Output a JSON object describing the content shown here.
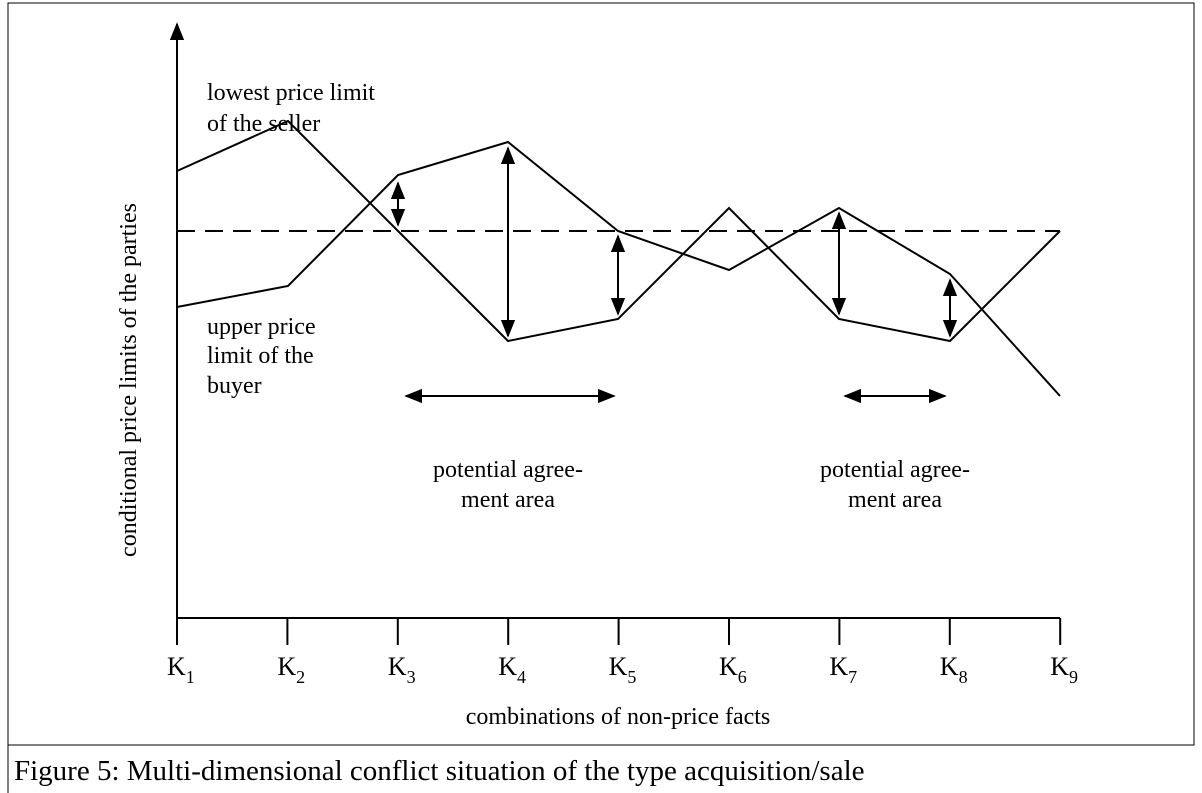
{
  "figure": {
    "seller_label": [
      "lowest price limit",
      "of the seller"
    ],
    "buyer_label": [
      "upper price",
      "limit of the",
      "buyer"
    ],
    "areas": [
      [
        "potential agree-",
        "ment area"
      ],
      [
        "potential agree-",
        "ment area"
      ]
    ],
    "y_axis_label": "conditional price limits of the parties",
    "x_axis_label": "combinations of non-price facts",
    "ticks": [
      {
        "base": "K",
        "sub": "1"
      },
      {
        "base": "K",
        "sub": "2"
      },
      {
        "base": "K",
        "sub": "3"
      },
      {
        "base": "K",
        "sub": "4"
      },
      {
        "base": "K",
        "sub": "5"
      },
      {
        "base": "K",
        "sub": "6"
      },
      {
        "base": "K",
        "sub": "7"
      },
      {
        "base": "K",
        "sub": "8"
      },
      {
        "base": "K",
        "sub": "9"
      }
    ],
    "caption": "Figure 5: Multi-dimensional conflict situation of the type acquisition/sale"
  }
}
